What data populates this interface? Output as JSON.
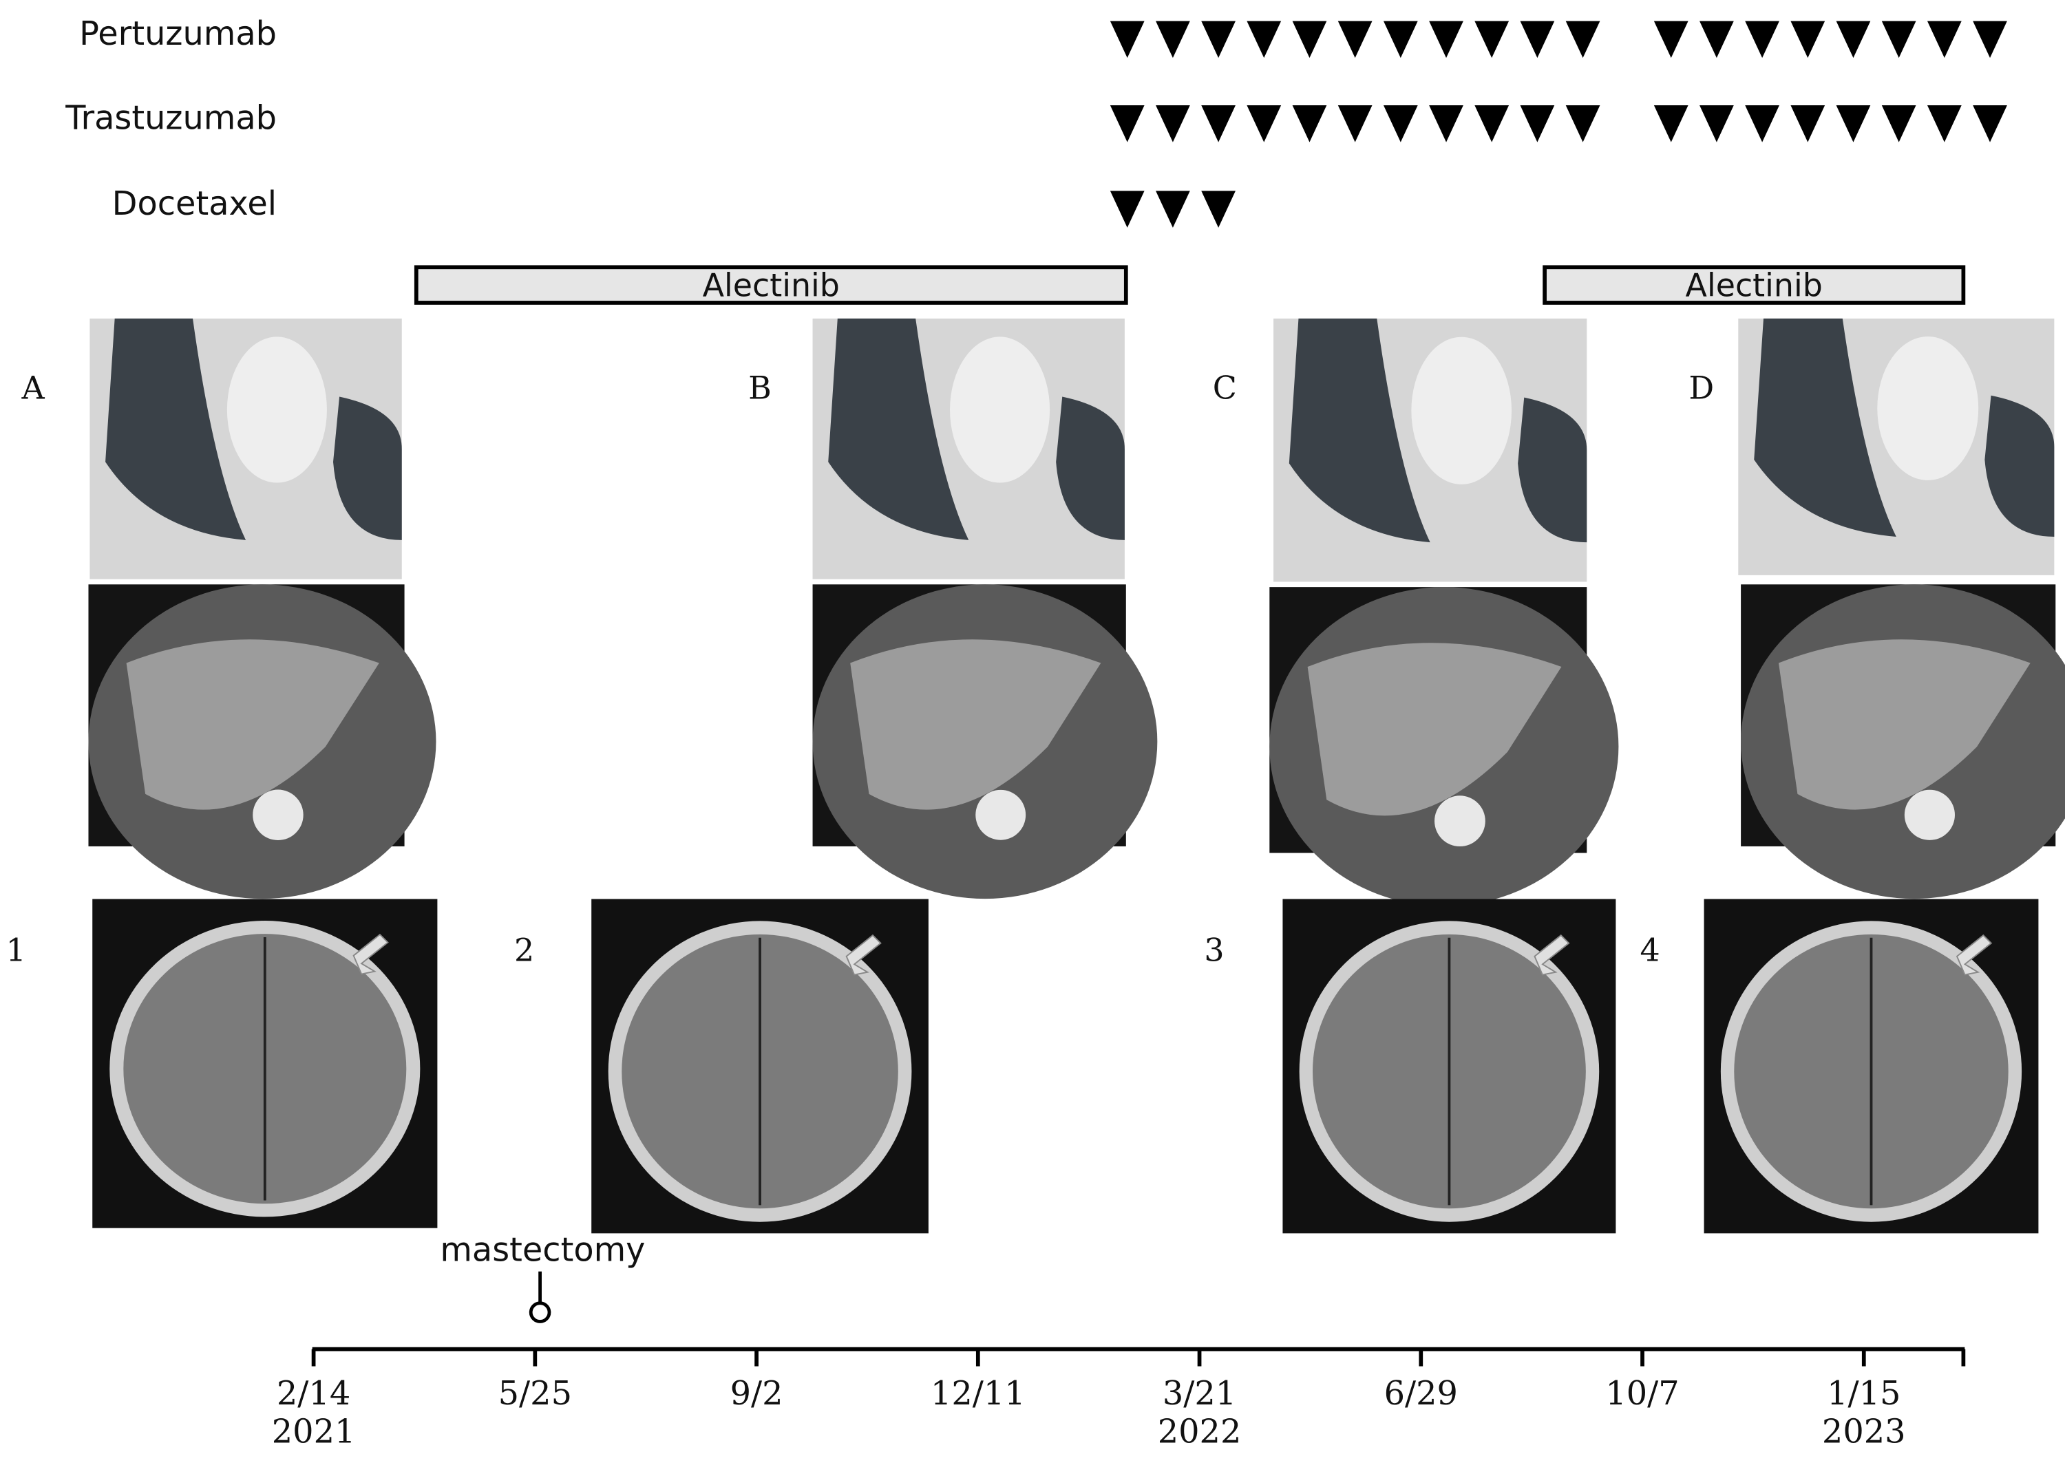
{
  "treatments": [
    {
      "label": "Pertuzumab"
    },
    {
      "label": "Trastuzumab"
    },
    {
      "label": "Docetaxel"
    }
  ],
  "bars": [
    {
      "label": "Alectinib"
    },
    {
      "label": "Alectinib"
    }
  ],
  "ct_panels": [
    "A",
    "B",
    "C",
    "D"
  ],
  "mri_panels": [
    "1",
    "2",
    "3",
    "4"
  ],
  "event": "mastectomy",
  "timeline": [
    {
      "date": "2/14",
      "year": "2021"
    },
    {
      "date": "5/25"
    },
    {
      "date": "9/2"
    },
    {
      "date": "12/11"
    },
    {
      "date": "3/21",
      "year": "2022"
    },
    {
      "date": "6/29"
    },
    {
      "date": "10/7"
    },
    {
      "date": "1/15",
      "year": "2023"
    }
  ]
}
